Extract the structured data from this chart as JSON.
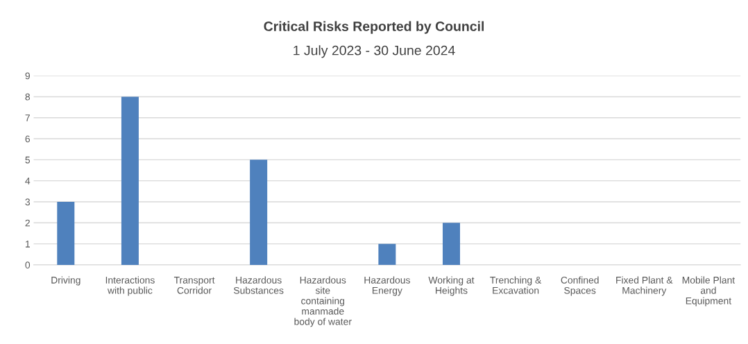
{
  "chart_data": {
    "type": "bar",
    "title": "Critical Risks Reported by Council",
    "subtitle": "1 July 2023 - 30 June 2024",
    "categories": [
      "Driving",
      "Interactions\nwith public",
      "Transport\nCorridor",
      "Hazardous\nSubstances",
      "Hazardous\nsite\ncontaining\nmanmade\nbody of water",
      "Hazardous\nEnergy",
      "Working at\nHeights",
      "Trenching &\nExcavation",
      "Confined\nSpaces",
      "Fixed Plant &\nMachinery",
      "Mobile Plant\nand\nEquipment"
    ],
    "values": [
      3,
      8,
      0,
      5,
      0,
      1,
      2,
      0,
      0,
      0,
      0
    ],
    "color": "#4f81bd",
    "ylim": [
      0,
      9
    ],
    "yticks": [
      0,
      1,
      2,
      3,
      4,
      5,
      6,
      7,
      8,
      9
    ],
    "grid": "y"
  }
}
